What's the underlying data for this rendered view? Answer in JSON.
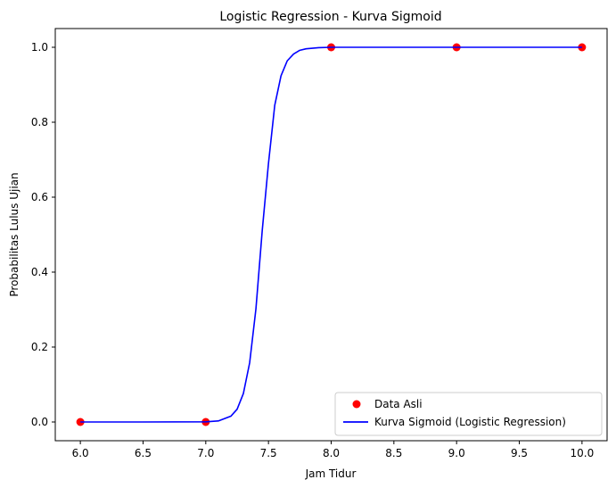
{
  "chart_data": {
    "type": "scatter",
    "title": "Logistic Regression - Kurva Sigmoid",
    "xlabel": "Jam Tidur",
    "ylabel": "Probabilitas Lulus Ujian",
    "xlim": [
      5.8,
      10.2
    ],
    "ylim": [
      -0.05,
      1.05
    ],
    "grid": false,
    "legend_position": "bottom-right",
    "x_ticks": [
      "6.0",
      "6.5",
      "7.0",
      "7.5",
      "8.0",
      "8.5",
      "9.0",
      "9.5",
      "10.0"
    ],
    "y_ticks": [
      "0.0",
      "0.2",
      "0.4",
      "0.6",
      "0.8",
      "1.0"
    ],
    "series": [
      {
        "name": "Data Asli",
        "kind": "scatter",
        "color": "#ff0000",
        "x": [
          6,
          7,
          8,
          9,
          10
        ],
        "y": [
          0,
          0,
          1,
          1,
          1
        ]
      },
      {
        "name": "Kurva Sigmoid (Logistic Regression)",
        "kind": "line",
        "color": "#0000ff",
        "x": [
          6.0,
          6.5,
          7.0,
          7.1,
          7.2,
          7.25,
          7.3,
          7.35,
          7.4,
          7.45,
          7.5,
          7.55,
          7.6,
          7.65,
          7.7,
          7.75,
          7.8,
          7.9,
          8.0,
          8.5,
          9.0,
          9.5,
          10.0
        ],
        "y": [
          0.0,
          0.0,
          0.0004,
          0.0028,
          0.0154,
          0.034,
          0.076,
          0.158,
          0.302,
          0.51,
          0.69,
          0.845,
          0.924,
          0.964,
          0.982,
          0.992,
          0.996,
          0.999,
          1.0,
          1.0,
          1.0,
          1.0,
          1.0
        ]
      }
    ]
  }
}
